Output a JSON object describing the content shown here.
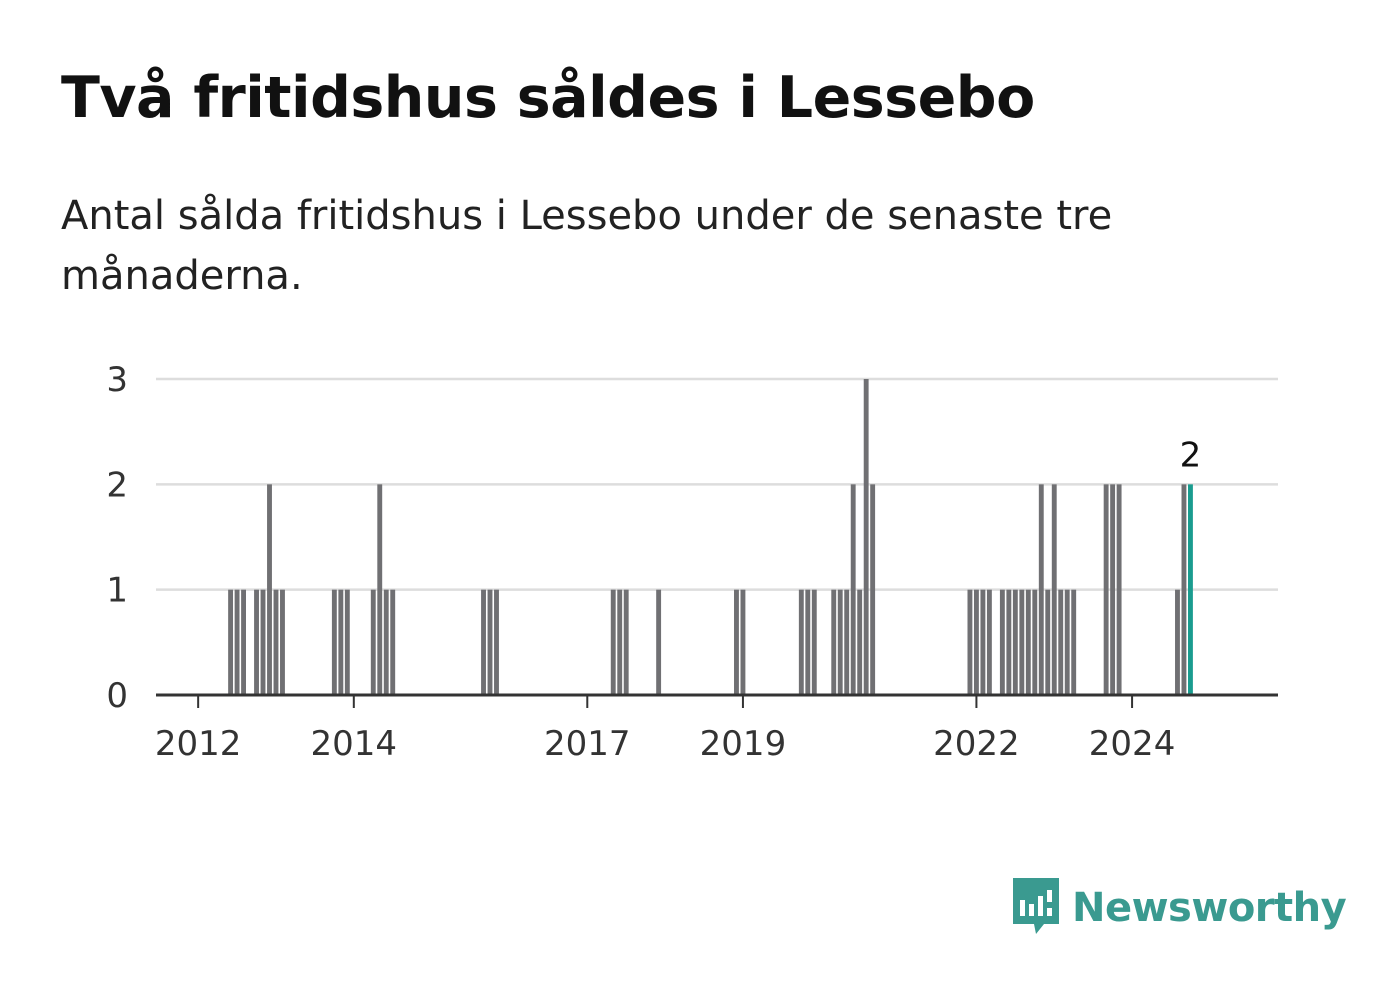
{
  "title": "Två fritidshus såldes i Lessebo",
  "subtitle": "Antal sålda fritidshus i Lessebo under de senaste tre månaderna.",
  "brand": {
    "name": "Newsworthy",
    "icon": "newsworthy-logo-icon"
  },
  "colors": {
    "bar": "#707073",
    "highlight": "#1a9c8f",
    "grid": "#dddddd",
    "axis": "#333333",
    "brand": "#3a9a90"
  },
  "chart_data": {
    "type": "bar",
    "title": "Två fritidshus såldes i Lessebo",
    "xlabel": "",
    "ylabel": "",
    "ylim": [
      0,
      3
    ],
    "yticks": [
      0,
      1,
      2,
      3
    ],
    "xticks": [
      "2012",
      "2014",
      "2017",
      "2019",
      "2022",
      "2024"
    ],
    "grid": true,
    "x_range": [
      "2011-07",
      "2025-12"
    ],
    "highlight_label": "2",
    "categories": [
      "2012-06",
      "2012-07",
      "2012-08",
      "2012-10",
      "2012-11",
      "2012-12",
      "2013-01",
      "2013-02",
      "2013-10",
      "2013-11",
      "2013-12",
      "2014-04",
      "2014-05",
      "2014-06",
      "2014-07",
      "2015-09",
      "2015-10",
      "2015-11",
      "2017-05",
      "2017-06",
      "2017-07",
      "2017-12",
      "2018-12",
      "2019-01",
      "2019-10",
      "2019-11",
      "2019-12",
      "2020-03",
      "2020-04",
      "2020-05",
      "2020-06",
      "2020-07",
      "2020-08",
      "2020-09",
      "2021-12",
      "2022-01",
      "2022-02",
      "2022-03",
      "2022-05",
      "2022-06",
      "2022-07",
      "2022-08",
      "2022-09",
      "2022-10",
      "2022-11",
      "2022-12",
      "2023-01",
      "2023-02",
      "2023-03",
      "2023-04",
      "2023-09",
      "2023-10",
      "2023-11",
      "2024-08",
      "2024-09",
      "2024-10"
    ],
    "values": [
      1,
      1,
      1,
      1,
      1,
      2,
      1,
      1,
      1,
      1,
      1,
      1,
      2,
      1,
      1,
      1,
      1,
      1,
      1,
      1,
      1,
      1,
      1,
      1,
      1,
      1,
      1,
      1,
      1,
      1,
      2,
      1,
      3,
      2,
      1,
      1,
      1,
      1,
      1,
      1,
      1,
      1,
      1,
      1,
      2,
      1,
      2,
      1,
      1,
      1,
      2,
      2,
      2,
      1,
      2,
      2
    ],
    "highlight_category": "2024-10"
  }
}
